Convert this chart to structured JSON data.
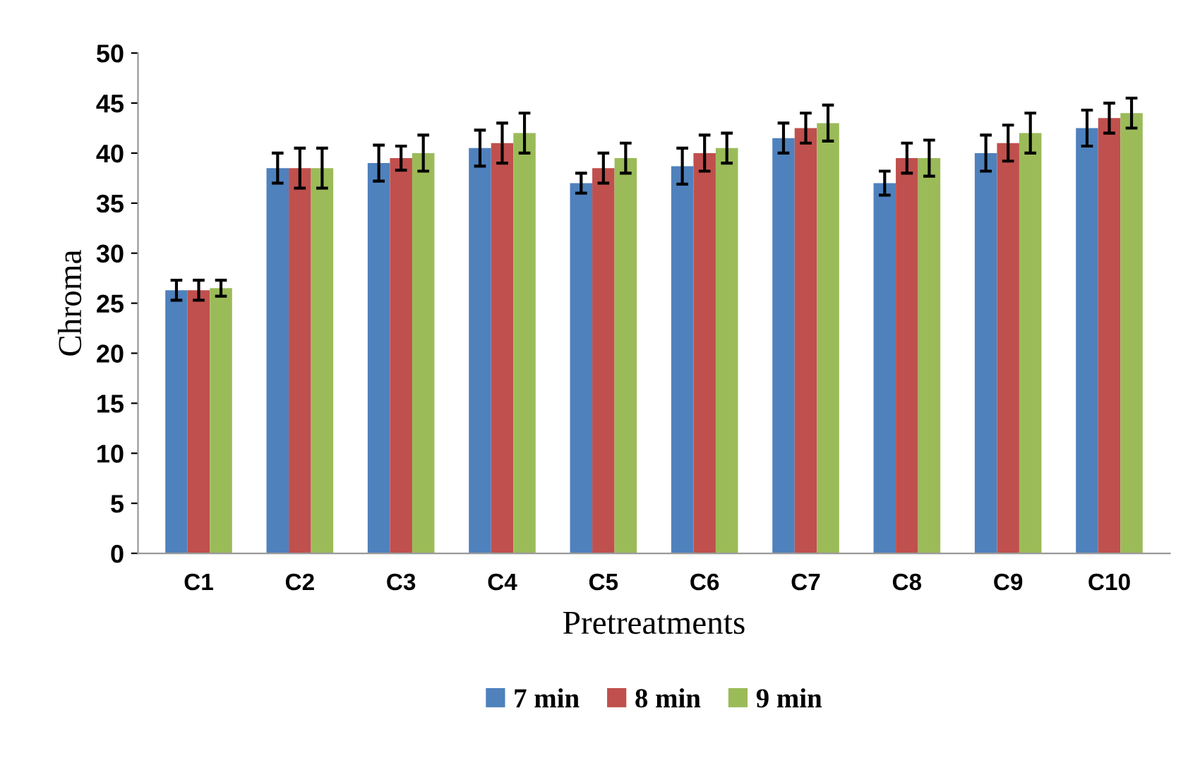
{
  "chart_data": {
    "type": "bar",
    "xlabel": "Pretreatments",
    "ylabel": "Chroma",
    "categories": [
      "C1",
      "C2",
      "C3",
      "C4",
      "C5",
      "C6",
      "C7",
      "C8",
      "C9",
      "C10"
    ],
    "ylim": [
      0,
      50
    ],
    "yticks": [
      0,
      5,
      10,
      15,
      20,
      25,
      30,
      35,
      40,
      45,
      50
    ],
    "grid": false,
    "legend": "bottom",
    "series": [
      {
        "name": "7 min",
        "color": "#4f81bd",
        "values": [
          26.3,
          38.5,
          39,
          40.5,
          37,
          38.7,
          41.5,
          37,
          40,
          42.5
        ],
        "errors": [
          1,
          1.5,
          1.8,
          1.8,
          1,
          1.8,
          1.5,
          1.2,
          1.8,
          1.8
        ]
      },
      {
        "name": "8 min",
        "color": "#c0504d",
        "values": [
          26.3,
          38.5,
          39.5,
          41,
          38.5,
          40,
          42.5,
          39.5,
          41,
          43.5
        ],
        "errors": [
          1,
          2,
          1.2,
          2,
          1.5,
          1.8,
          1.5,
          1.5,
          1.8,
          1.5
        ]
      },
      {
        "name": "9 min",
        "color": "#9bbb59",
        "values": [
          26.5,
          38.5,
          40,
          42,
          39.5,
          40.5,
          43,
          39.5,
          42,
          44
        ],
        "errors": [
          0.8,
          2,
          1.8,
          2,
          1.5,
          1.5,
          1.8,
          1.8,
          2,
          1.5
        ]
      }
    ]
  }
}
